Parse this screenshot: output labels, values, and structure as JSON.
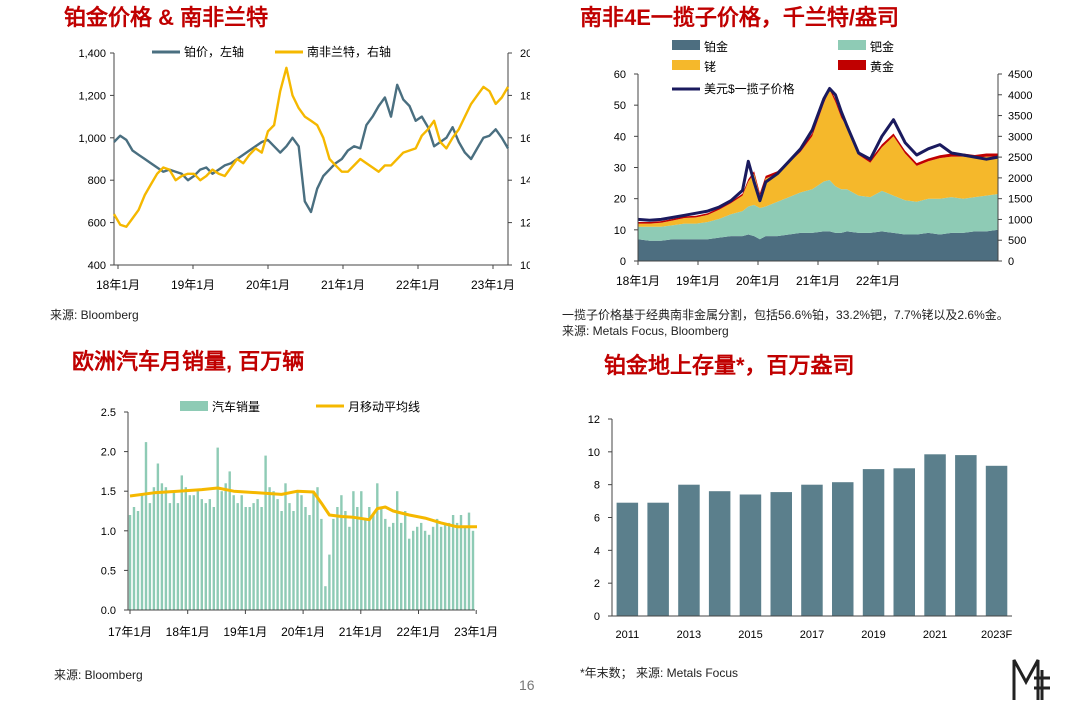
{
  "page_number": "16",
  "brand_colors": {
    "title_red": "#c00000",
    "pt_blue": "#4a6f80",
    "rand_gold": "#f5b800",
    "teal": "#5b7f8c"
  },
  "logo": {
    "name": "metals-focus-logo",
    "mark": "MF"
  },
  "panels": [
    {
      "title": "铂金价格 & 南非兰特",
      "source": "来源: Bloomberg"
    },
    {
      "title": "南非4E一揽子价格，千兰特/盎司",
      "note": "一揽子价格基于经典南非金属分割，包括56.6%铂，33.2%钯，7.7%铑以及2.6%金。",
      "source": "来源: Metals Focus, Bloomberg"
    },
    {
      "title": "欧洲汽车月销量, 百万辆",
      "source": "来源: Bloomberg"
    },
    {
      "title": "铂金地上存量*，百万盎司",
      "source": "*年末数；  来源: Metals Focus"
    }
  ],
  "chart_data": [
    {
      "type": "line",
      "title": "铂金价格 & 南非兰特",
      "x_labels": [
        "18年1月",
        "19年1月",
        "20年1月",
        "21年1月",
        "22年1月",
        "23年1月"
      ],
      "x_range": [
        0,
        64
      ],
      "ylim_left": [
        400,
        1400
      ],
      "yticks_left": [
        "400",
        "600",
        "800",
        "1,000",
        "1,200",
        "1,400"
      ],
      "ylim_right": [
        10,
        20
      ],
      "yticks_right": [
        "10",
        "12",
        "14",
        "16",
        "18",
        "20"
      ],
      "legend_location": "top",
      "series": [
        {
          "name": "铂价，左轴",
          "axis": "left",
          "color": "#4a6f80",
          "x": [
            0,
            1,
            2,
            3,
            4,
            5,
            6,
            7,
            8,
            9,
            10,
            11,
            12,
            13,
            14,
            15,
            16,
            17,
            18,
            19,
            20,
            21,
            22,
            23,
            24,
            25,
            26,
            27,
            28,
            29,
            30,
            31,
            32,
            33,
            34,
            35,
            36,
            37,
            38,
            39,
            40,
            41,
            42,
            43,
            44,
            45,
            46,
            47,
            48,
            49,
            50,
            51,
            52,
            53,
            54,
            55,
            56,
            57,
            58,
            59,
            60,
            61,
            62,
            63,
            64
          ],
          "values": [
            980,
            1010,
            990,
            940,
            920,
            900,
            880,
            860,
            840,
            850,
            840,
            830,
            800,
            820,
            850,
            860,
            830,
            850,
            870,
            880,
            900,
            920,
            940,
            960,
            980,
            990,
            960,
            930,
            960,
            1000,
            960,
            700,
            650,
            760,
            820,
            850,
            880,
            900,
            940,
            960,
            950,
            1060,
            1100,
            1150,
            1190,
            1100,
            1250,
            1180,
            1150,
            1080,
            1100,
            1050,
            960,
            980,
            1000,
            1050,
            980,
            930,
            900,
            950,
            1000,
            1010,
            1040,
            1000,
            950
          ]
        },
        {
          "name": "南非兰特，右轴",
          "axis": "right",
          "color": "#f5b800",
          "x": [
            0,
            1,
            2,
            3,
            4,
            5,
            6,
            7,
            8,
            9,
            10,
            11,
            12,
            13,
            14,
            15,
            16,
            17,
            18,
            19,
            20,
            21,
            22,
            23,
            24,
            25,
            26,
            27,
            28,
            29,
            30,
            31,
            32,
            33,
            34,
            35,
            36,
            37,
            38,
            39,
            40,
            41,
            42,
            43,
            44,
            45,
            46,
            47,
            48,
            49,
            50,
            51,
            52,
            53,
            54,
            55,
            56,
            57,
            58,
            59,
            60,
            61,
            62,
            63,
            64
          ],
          "values": [
            12.4,
            11.9,
            11.8,
            12.2,
            12.6,
            13.3,
            13.8,
            14.3,
            14.6,
            14.5,
            14.0,
            14.2,
            14.3,
            14.3,
            14.0,
            14.2,
            14.5,
            14.3,
            14.2,
            14.6,
            15.0,
            14.8,
            15.2,
            15.5,
            15.3,
            16.3,
            16.6,
            18.2,
            19.3,
            18.0,
            17.4,
            17.0,
            16.8,
            16.6,
            16.0,
            15.0,
            14.7,
            14.4,
            14.4,
            14.7,
            15.0,
            14.8,
            14.6,
            14.4,
            14.7,
            14.7,
            15.0,
            15.3,
            15.4,
            15.5,
            16.1,
            16.4,
            16.8,
            15.8,
            15.5,
            16.0,
            16.4,
            17.0,
            17.6,
            18.0,
            18.4,
            18.2,
            17.6,
            17.9,
            18.4
          ]
        }
      ]
    },
    {
      "type": "area",
      "title": "南非4E一揽子价格，千兰特/盎司",
      "x_labels": [
        "18年1月",
        "19年1月",
        "20年1月",
        "21年1月",
        "22年1月"
      ],
      "x": [
        0,
        2,
        4,
        6,
        8,
        10,
        12,
        14,
        16,
        18,
        19,
        20,
        21,
        22,
        24,
        26,
        28,
        30,
        32,
        33,
        34,
        35,
        36,
        38,
        40,
        42,
        44,
        46,
        48,
        50,
        52,
        54,
        56,
        58,
        60,
        62
      ],
      "ylim_left": [
        0,
        60
      ],
      "yticks_left": [
        "0",
        "10",
        "20",
        "30",
        "40",
        "50",
        "60"
      ],
      "ylim_right": [
        0,
        4500
      ],
      "yticks_right": [
        "0",
        "500",
        "1000",
        "1500",
        "2000",
        "2500",
        "3000",
        "3500",
        "4000",
        "4500"
      ],
      "legend_location": "top",
      "series": [
        {
          "name": "铂金",
          "color": "#4d6e80",
          "values": [
            7,
            6.5,
            6.5,
            7,
            7,
            7,
            7,
            7.5,
            8,
            8,
            8.5,
            8,
            7,
            8,
            8,
            8.5,
            9,
            9,
            9.5,
            9.5,
            9,
            9,
            9.5,
            9,
            9,
            9.5,
            9,
            8.5,
            8.5,
            9,
            8.5,
            9,
            9,
            9.5,
            9.5,
            10
          ]
        },
        {
          "name": "钯金",
          "color": "#8ecbb5",
          "values": [
            4,
            4.5,
            4.5,
            4.5,
            5,
            5,
            5.5,
            6,
            7,
            8,
            9,
            10,
            10,
            9.5,
            11,
            12,
            13,
            14,
            16,
            16.5,
            15,
            14,
            13.5,
            12,
            11.5,
            13,
            12,
            11,
            10.5,
            11,
            11.5,
            11.5,
            11,
            11,
            11.5,
            11.5
          ]
        },
        {
          "name": "铑",
          "color": "#f5b82b",
          "values": [
            1,
            1,
            1.3,
            1.5,
            1.8,
            2,
            2.3,
            3,
            3.5,
            5,
            8,
            10,
            4,
            9,
            9,
            11,
            13,
            17,
            25,
            29,
            27,
            23,
            20,
            13,
            11,
            14,
            19,
            15,
            11.5,
            12,
            13,
            13,
            13.5,
            12.5,
            12.5,
            12
          ]
        },
        {
          "name": "黄金",
          "color": "#c00000",
          "values": [
            0.5,
            0.5,
            0.5,
            0.5,
            0.5,
            0.5,
            0.5,
            0.5,
            0.5,
            0.6,
            0.7,
            0.8,
            0.8,
            0.8,
            0.8,
            0.8,
            0.9,
            0.9,
            0.9,
            0.9,
            0.9,
            0.9,
            0.9,
            0.9,
            0.9,
            0.9,
            0.9,
            0.9,
            0.9,
            0.9,
            0.9,
            1,
            1,
            1,
            1,
            1
          ]
        },
        {
          "name": "美元$一揽子价格",
          "axis": "right",
          "color": "#1a1a5e",
          "values": [
            1000,
            980,
            1000,
            1050,
            1100,
            1150,
            1200,
            1300,
            1450,
            1700,
            2400,
            1900,
            1450,
            1900,
            2100,
            2400,
            2700,
            3150,
            3900,
            4150,
            4000,
            3600,
            3250,
            2600,
            2450,
            3000,
            3400,
            2850,
            2550,
            2700,
            2800,
            2600,
            2550,
            2500,
            2450,
            2500
          ]
        }
      ]
    },
    {
      "type": "bar",
      "title": "欧洲汽车月销量, 百万辆",
      "x_labels": [
        "17年1月",
        "18年1月",
        "19年1月",
        "20年1月",
        "21年1月",
        "22年1月",
        "23年1月"
      ],
      "ylim": [
        0,
        2.5
      ],
      "yticks": [
        "0.0",
        "0.5",
        "1.0",
        "1.5",
        "2.0",
        "2.5"
      ],
      "legend_location": "top",
      "series": [
        {
          "name": "汽车销量",
          "color": "#8ecbb5",
          "values": [
            1.2,
            1.3,
            1.25,
            1.45,
            2.12,
            1.35,
            1.55,
            1.85,
            1.6,
            1.55,
            1.35,
            1.5,
            1.35,
            1.7,
            1.55,
            1.45,
            1.45,
            1.5,
            1.4,
            1.35,
            1.4,
            1.3,
            2.05,
            1.5,
            1.6,
            1.75,
            1.45,
            1.35,
            1.45,
            1.3,
            1.3,
            1.35,
            1.4,
            1.3,
            1.95,
            1.55,
            1.5,
            1.4,
            1.25,
            1.6,
            1.35,
            1.25,
            1.5,
            1.45,
            1.3,
            1.2,
            1.5,
            1.55,
            1.15,
            0.3,
            0.7,
            1.15,
            1.3,
            1.45,
            1.25,
            1.05,
            1.5,
            1.3,
            1.5,
            1.15,
            1.3,
            1.2,
            1.6,
            1.3,
            1.15,
            1.05,
            1.1,
            1.5,
            1.1,
            1.25,
            0.9,
            1.0,
            1.05,
            1.1,
            1.0,
            0.95,
            1.05,
            1.15,
            1.05,
            1.1,
            1.1,
            1.2,
            1.1,
            1.2,
            1.05,
            1.23,
            1.0
          ]
        },
        {
          "name": "月移动平均线",
          "color": "#f5b800",
          "x": [
            0,
            6,
            12,
            18,
            22,
            26,
            32,
            38,
            42,
            46,
            48,
            50,
            53,
            56,
            60,
            62,
            64,
            66,
            70,
            74,
            78,
            82,
            87
          ],
          "values": [
            1.44,
            1.48,
            1.5,
            1.52,
            1.54,
            1.5,
            1.48,
            1.46,
            1.5,
            1.49,
            1.35,
            1.2,
            1.18,
            1.17,
            1.14,
            1.28,
            1.3,
            1.25,
            1.2,
            1.16,
            1.1,
            1.05,
            1.05
          ]
        }
      ]
    },
    {
      "type": "bar",
      "title": "铂金地上存量*，百万盎司",
      "categories": [
        "2011",
        "2012",
        "2013",
        "2014",
        "2015",
        "2016",
        "2017",
        "2018",
        "2019",
        "2020",
        "2021",
        "2022",
        "2023F"
      ],
      "x_labels": [
        "2011",
        "2013",
        "2015",
        "2017",
        "2019",
        "2021",
        "2023F"
      ],
      "values": [
        6.9,
        6.9,
        8.0,
        7.6,
        7.4,
        7.55,
        8.0,
        8.15,
        8.95,
        9.0,
        9.85,
        9.8,
        9.15
      ],
      "ylim": [
        0,
        12
      ],
      "yticks": [
        "0",
        "2",
        "4",
        "6",
        "8",
        "10",
        "12"
      ],
      "color": "#5b7f8c"
    }
  ]
}
